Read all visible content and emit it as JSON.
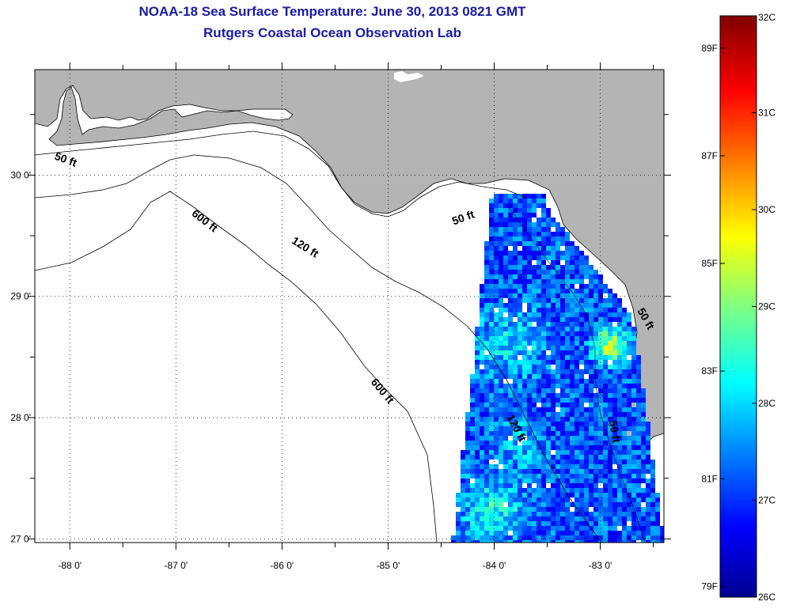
{
  "title": "NOAA-18 Sea Surface Temperature:  June 30, 2013 0821 GMT",
  "subtitle": "Rutgers Coastal Ocean Observation Lab",
  "map": {
    "lon_range": [
      -88.33,
      -82.4
    ],
    "lat_range": [
      26.97,
      30.87
    ],
    "lon_ticks": [
      {
        "value": -88,
        "label": "-88 0'"
      },
      {
        "value": -87,
        "label": "-87 0'"
      },
      {
        "value": -86,
        "label": "-86 0'"
      },
      {
        "value": -85,
        "label": "-85 0'"
      },
      {
        "value": -84,
        "label": "-84 0'"
      },
      {
        "value": -83,
        "label": "-83 0'"
      }
    ],
    "lat_ticks": [
      {
        "value": 27,
        "label": "27 0'"
      },
      {
        "value": 28,
        "label": "28 0'"
      },
      {
        "value": 29,
        "label": "29 0'"
      },
      {
        "value": 30,
        "label": "30 0'"
      }
    ],
    "land_color": "#b4b4b4",
    "ocean_color": "#ffffff",
    "grid": "dotted",
    "contour_labels": [
      {
        "text": "50 ft",
        "lon": -88.05,
        "lat": 30.1,
        "angle": 20
      },
      {
        "text": "600 ft",
        "lon": -86.75,
        "lat": 29.6,
        "angle": 38
      },
      {
        "text": "120 ft",
        "lon": -85.8,
        "lat": 29.38,
        "angle": 32
      },
      {
        "text": "600 ft",
        "lon": -85.08,
        "lat": 28.2,
        "angle": 50
      },
      {
        "text": "50 ft",
        "lon": -84.28,
        "lat": 29.62,
        "angle": -20
      },
      {
        "text": "120 ft",
        "lon": -83.82,
        "lat": 27.9,
        "angle": 62
      },
      {
        "text": "50 ft",
        "lon": -82.9,
        "lat": 27.88,
        "angle": 80
      },
      {
        "text": "50 ft",
        "lon": -82.6,
        "lat": 28.8,
        "angle": 60
      }
    ]
  },
  "colorbar": {
    "celsius_ticks": [
      {
        "value": 32,
        "label": "32C"
      },
      {
        "value": 31,
        "label": "31C"
      },
      {
        "value": 30,
        "label": "30C"
      },
      {
        "value": 29,
        "label": "29C"
      },
      {
        "value": 28,
        "label": "28C"
      },
      {
        "value": 27,
        "label": "27C"
      },
      {
        "value": 26,
        "label": "26C"
      }
    ],
    "fahrenheit_ticks": [
      {
        "value": 89,
        "label": "89F"
      },
      {
        "value": 87,
        "label": "87F"
      },
      {
        "value": 85,
        "label": "85F"
      },
      {
        "value": 83,
        "label": "83F"
      },
      {
        "value": 81,
        "label": "81F"
      },
      {
        "value": 79,
        "label": "79F"
      }
    ],
    "range_c": [
      26,
      32
    ],
    "colormap": "jet"
  }
}
